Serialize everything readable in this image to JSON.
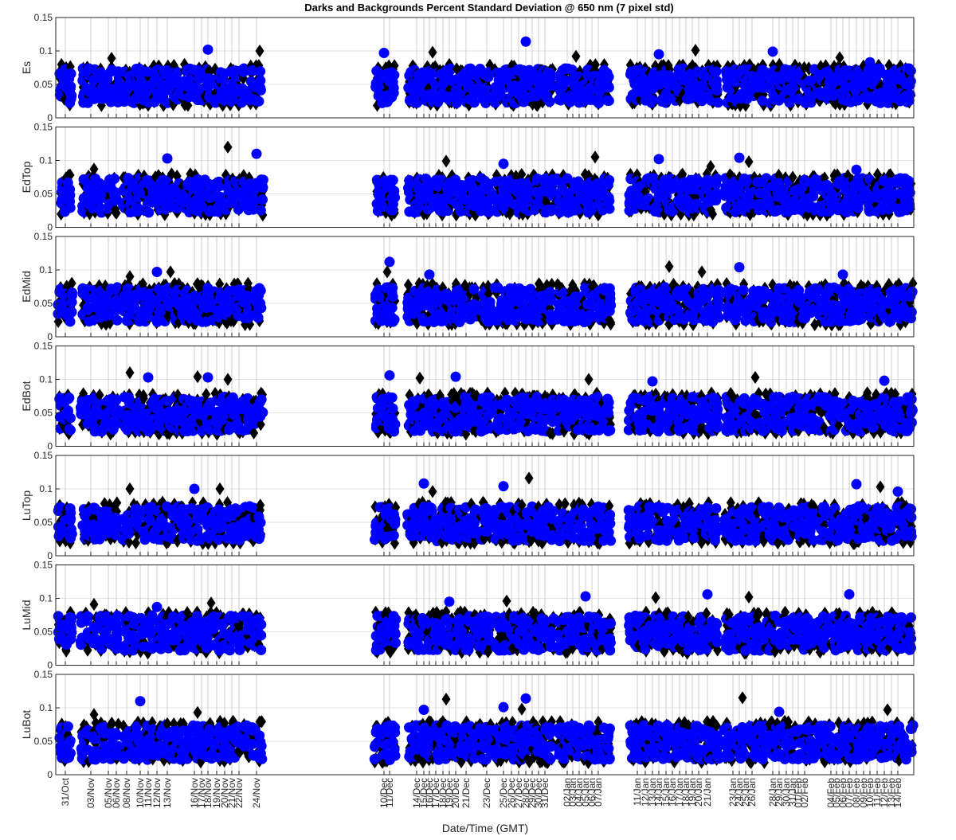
{
  "chart_data": {
    "type": "scatter",
    "title": "Darks and Backgrounds Percent Standard Deviation @ 650 nm (7 pixel std)",
    "xlabel": "Date/Time (GMT)",
    "x_tick_labels": [
      "31/Oct",
      "03/Nov",
      "05/Nov",
      "06/Nov",
      "08/Nov",
      "10/Nov",
      "11/Nov",
      "12/Nov",
      "13/Nov",
      "16/Nov",
      "17/Nov",
      "18/Nov",
      "19/Nov",
      "20/Nov",
      "21/Nov",
      "22/Nov",
      "24/Nov",
      "10/Dec",
      "11/Dec",
      "14/Dec",
      "15/Dec",
      "16/Dec",
      "17/Dec",
      "18/Dec",
      "19/Dec",
      "20/Dec",
      "21/Dec",
      "23/Dec",
      "25/Dec",
      "26/Dec",
      "27/Dec",
      "28/Dec",
      "29/Dec",
      "30/Dec",
      "31/Dec",
      "02/Jan",
      "03/Jan",
      "04/Jan",
      "05/Jan",
      "06/Jan",
      "07/Jan",
      "11/Jan",
      "12/Jan",
      "13/Jan",
      "14/Jan",
      "15/Jan",
      "16/Jan",
      "17/Jan",
      "18/Jan",
      "19/Jan",
      "20/Jan",
      "21/Jan",
      "23/Jan",
      "24/Jan",
      "25/Jan",
      "26/Jan",
      "28/Jan",
      "29/Jan",
      "30/Jan",
      "31/Jan",
      "01/Feb",
      "02/Feb",
      "04/Feb",
      "05/Feb",
      "06/Feb",
      "07/Feb",
      "08/Feb",
      "09/Feb",
      "10/Feb",
      "11/Feb",
      "12/Feb",
      "13/Feb",
      "14/Feb"
    ],
    "y_ticks": [
      0,
      0.05,
      0.1,
      0.15
    ],
    "y_tick_labels": [
      "0",
      "0.05",
      "0.1",
      "0.15"
    ],
    "ylim": [
      0,
      0.15
    ],
    "grid": true,
    "marker_series": [
      {
        "name": "Darks",
        "marker": "diamond",
        "color": "#000000"
      },
      {
        "name": "Backgrounds",
        "marker": "circle",
        "color": "#0000ff"
      }
    ],
    "panels": [
      {
        "ylabel": "Es",
        "highlights": [
          [
            2,
            0.089
          ],
          [
            11,
            0.102
          ],
          [
            16,
            0.1
          ],
          [
            17,
            0.097
          ],
          [
            21,
            0.098
          ],
          [
            31,
            0.114
          ],
          [
            36,
            0.092
          ],
          [
            44,
            0.095
          ],
          [
            49,
            0.101
          ],
          [
            56,
            0.099
          ],
          [
            63,
            0.09
          ],
          [
            68,
            0.083
          ]
        ]
      },
      {
        "ylabel": "EdTop",
        "highlights": [
          [
            1,
            0.087
          ],
          [
            8,
            0.103
          ],
          [
            13,
            0.12
          ],
          [
            16,
            0.11
          ],
          [
            23,
            0.099
          ],
          [
            28,
            0.095
          ],
          [
            39,
            0.105
          ],
          [
            44,
            0.102
          ],
          [
            51,
            0.091
          ],
          [
            53,
            0.104
          ],
          [
            54,
            0.098
          ],
          [
            66,
            0.086
          ]
        ]
      },
      {
        "ylabel": "EdMid",
        "highlights": [
          [
            4,
            0.09
          ],
          [
            7,
            0.097
          ],
          [
            8,
            0.097
          ],
          [
            18,
            0.112
          ],
          [
            17,
            0.097
          ],
          [
            21,
            0.093
          ],
          [
            45,
            0.105
          ],
          [
            53,
            0.104
          ],
          [
            50,
            0.097
          ],
          [
            64,
            0.093
          ]
        ]
      },
      {
        "ylabel": "EdBot",
        "highlights": [
          [
            4,
            0.11
          ],
          [
            6,
            0.103
          ],
          [
            9,
            0.104
          ],
          [
            11,
            0.103
          ],
          [
            13,
            0.1
          ],
          [
            18,
            0.106
          ],
          [
            19,
            0.102
          ],
          [
            25,
            0.104
          ],
          [
            38,
            0.1
          ],
          [
            43,
            0.097
          ],
          [
            55,
            0.103
          ],
          [
            70,
            0.098
          ]
        ]
      },
      {
        "ylabel": "LuTop",
        "highlights": [
          [
            4,
            0.1
          ],
          [
            9,
            0.1
          ],
          [
            12,
            0.1
          ],
          [
            20,
            0.108
          ],
          [
            21,
            0.096
          ],
          [
            28,
            0.104
          ],
          [
            31,
            0.116
          ],
          [
            66,
            0.107
          ],
          [
            69,
            0.103
          ],
          [
            72,
            0.096
          ]
        ]
      },
      {
        "ylabel": "LuMid",
        "highlights": [
          [
            1,
            0.091
          ],
          [
            7,
            0.087
          ],
          [
            11,
            0.093
          ],
          [
            24,
            0.095
          ],
          [
            28,
            0.096
          ],
          [
            38,
            0.103
          ],
          [
            43,
            0.101
          ],
          [
            51,
            0.106
          ],
          [
            54,
            0.102
          ],
          [
            65,
            0.106
          ]
        ]
      },
      {
        "ylabel": "LuBot",
        "highlights": [
          [
            1,
            0.09
          ],
          [
            5,
            0.11
          ],
          [
            9,
            0.093
          ],
          [
            20,
            0.097
          ],
          [
            23,
            0.113
          ],
          [
            28,
            0.101
          ],
          [
            30,
            0.098
          ],
          [
            31,
            0.114
          ],
          [
            53,
            0.115
          ],
          [
            57,
            0.094
          ],
          [
            70,
            0.097
          ]
        ]
      }
    ]
  }
}
